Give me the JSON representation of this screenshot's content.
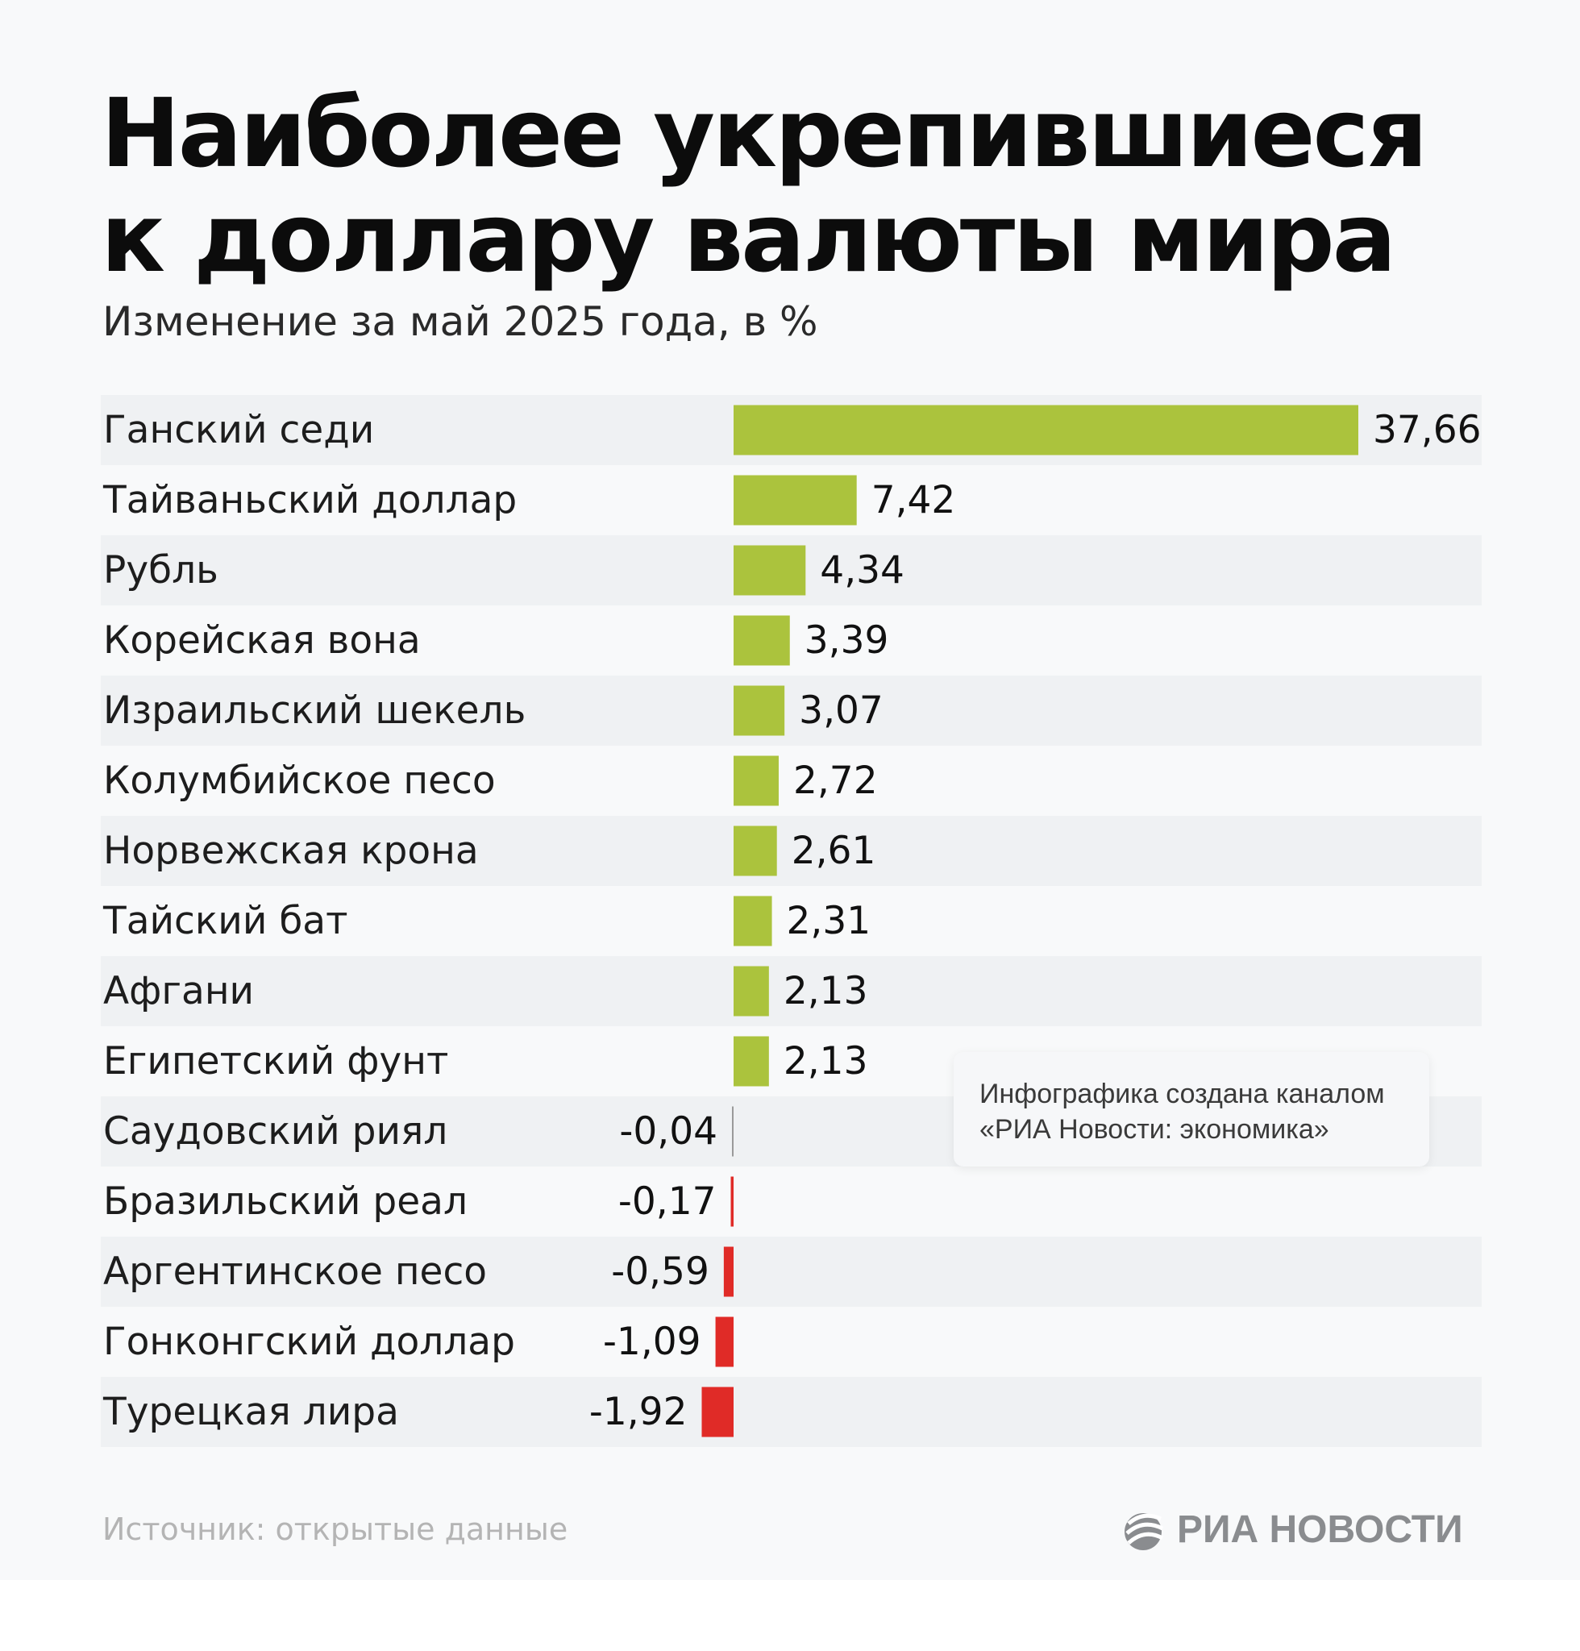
{
  "title_line1": "Наиболее укрепившиеся",
  "title_line2": "к доллару валюты мира",
  "subtitle": "Изменение за май 2025 года, в %",
  "note_line1": "Инфографика создана каналом",
  "note_line2": "«РИА Новости: экономика»",
  "source": "Источник: открытые данные",
  "logo_text": "РИА НОВОСТИ",
  "colors": {
    "positive": "#abc33d",
    "negative": "#e02b27",
    "stripe": "#eff1f3"
  },
  "chart_data": {
    "type": "bar",
    "orientation": "horizontal",
    "title": "Наиболее укрепившиеся к доллару валюты мира",
    "subtitle": "Изменение за май 2025 года, в %",
    "xlabel": "",
    "ylabel": "",
    "categories": [
      "Ганский седи",
      "Тайваньский доллар",
      "Рубль",
      "Корейская вона",
      "Израильский шекель",
      "Колумбийское песо",
      "Норвежская крона",
      "Тайский бат",
      "Афгани",
      "Египетский фунт",
      "Саудовский риял",
      "Бразильский реал",
      "Аргентинское песо",
      "Гонконгский доллар",
      "Турецкая лира"
    ],
    "values": [
      37.66,
      7.42,
      4.34,
      3.39,
      3.07,
      2.72,
      2.61,
      2.31,
      2.13,
      2.13,
      -0.04,
      -0.17,
      -0.59,
      -1.09,
      -1.92
    ],
    "value_labels": [
      "37,66",
      "7,42",
      "4,34",
      "3,39",
      "3,07",
      "2,72",
      "2,61",
      "2,31",
      "2,13",
      "2,13",
      "-0,04",
      "-0,17",
      "-0,59",
      "-1,09",
      "-1,92"
    ],
    "grid": false,
    "legend": "none"
  }
}
